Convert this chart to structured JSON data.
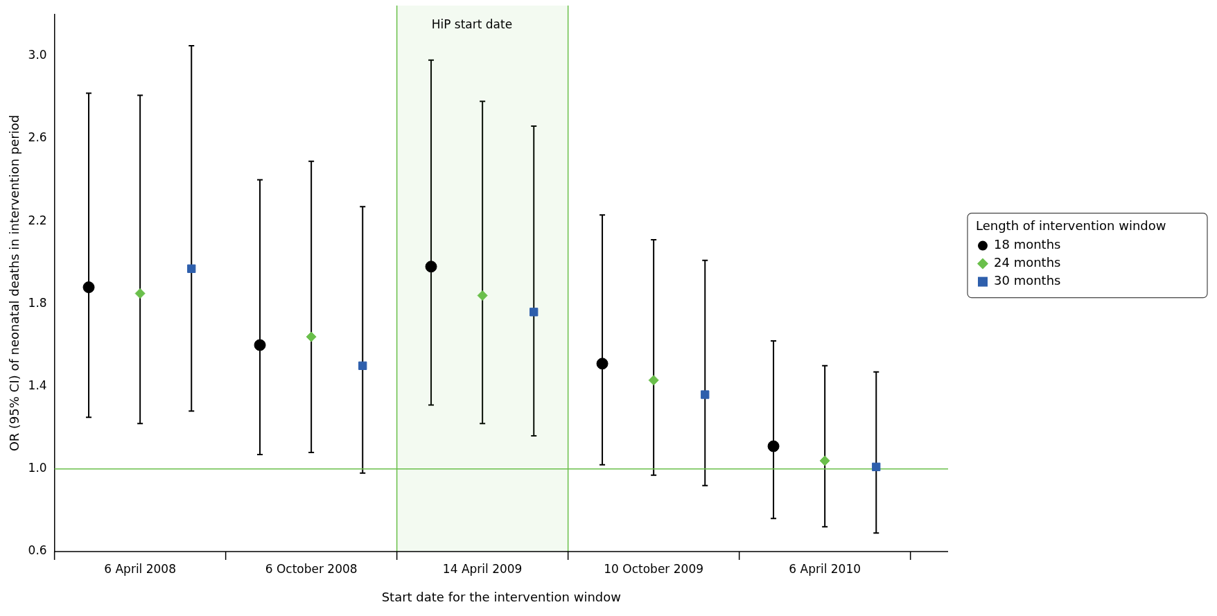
{
  "chart_data": {
    "type": "scatter",
    "xlabel": "Start date for the intervention window",
    "ylabel": "OR (95% CI) of neonatal deaths in intervention period",
    "legend_title": "Length of intervention window",
    "legend": "right",
    "categories": [
      "6 April 2008",
      "6 October 2008",
      "14 April 2009",
      "10 October 2009",
      "6 April 2010"
    ],
    "series": [
      {
        "name": "18 months",
        "color": "#000000",
        "marker": "circle",
        "values": [
          1.88,
          1.6,
          1.98,
          1.51,
          1.11
        ],
        "errors": [
          [
            1.25,
            2.82
          ],
          [
            1.07,
            2.4
          ],
          [
            1.31,
            2.98
          ],
          [
            1.02,
            2.23
          ],
          [
            0.76,
            1.62
          ]
        ]
      },
      {
        "name": "24 months",
        "color": "#6abf4b",
        "marker": "diamond",
        "values": [
          1.85,
          1.64,
          1.84,
          1.43,
          1.04
        ],
        "errors": [
          [
            1.22,
            2.81
          ],
          [
            1.08,
            2.49
          ],
          [
            1.22,
            2.78
          ],
          [
            0.97,
            2.11
          ],
          [
            0.72,
            1.5
          ]
        ]
      },
      {
        "name": "30 months",
        "color": "#2e5fac",
        "marker": "square",
        "values": [
          1.97,
          1.5,
          1.76,
          1.36,
          1.01
        ],
        "errors": [
          [
            1.28,
            3.05
          ],
          [
            0.98,
            2.27
          ],
          [
            1.16,
            2.66
          ],
          [
            0.92,
            2.01
          ],
          [
            0.69,
            1.47
          ]
        ]
      }
    ],
    "ylim": [
      0.6,
      3.2
    ],
    "yticks": [
      {
        "value": 0.6,
        "label": "0.6"
      },
      {
        "value": 1,
        "label": "1.0"
      },
      {
        "value": 1.4,
        "label": "1.4"
      },
      {
        "value": 1.8,
        "label": "1.8"
      },
      {
        "value": 2.2,
        "label": "2.2"
      },
      {
        "value": 2.6,
        "label": "2.6"
      },
      {
        "value": 3,
        "label": "3.0"
      }
    ],
    "ref_lines": [
      {
        "axis": "y",
        "value": 1,
        "color": "#6abf4b"
      }
    ],
    "bands": [
      {
        "axis": "x",
        "from": "14 April 2009",
        "to": "14 April 2009",
        "label": "HiP start date",
        "color": "#6abf4b"
      }
    ],
    "grid": false
  }
}
